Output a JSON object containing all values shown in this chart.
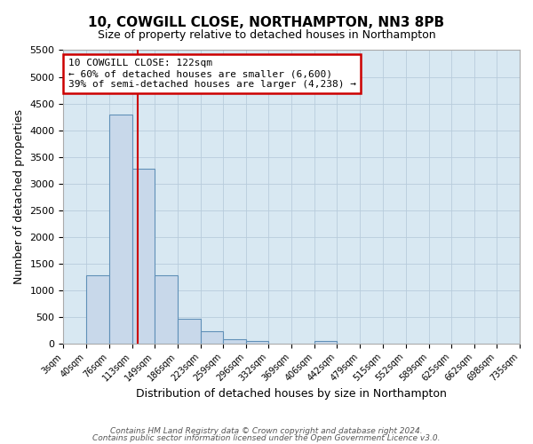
{
  "title": "10, COWGILL CLOSE, NORTHAMPTON, NN3 8PB",
  "subtitle": "Size of property relative to detached houses in Northampton",
  "xlabel": "Distribution of detached houses by size in Northampton",
  "ylabel": "Number of detached properties",
  "bin_edges": [
    3,
    40,
    76,
    113,
    149,
    186,
    223,
    259,
    296,
    332,
    369,
    406,
    442,
    479,
    515,
    552,
    589,
    625,
    662,
    698,
    735
  ],
  "bar_heights": [
    0,
    1270,
    4300,
    3270,
    1280,
    470,
    230,
    85,
    50,
    0,
    0,
    50,
    0,
    0,
    0,
    0,
    0,
    0,
    0,
    0
  ],
  "bar_color": "#c8d8ea",
  "bar_edge_color": "#6090b8",
  "vline_x": 122,
  "vline_color": "#cc0000",
  "annotation_line1": "10 COWGILL CLOSE: 122sqm",
  "annotation_line2": "← 60% of detached houses are smaller (6,600)",
  "annotation_line3": "39% of semi-detached houses are larger (4,238) →",
  "annotation_box_color": "#cc0000",
  "ylim": [
    0,
    5500
  ],
  "yticks": [
    0,
    500,
    1000,
    1500,
    2000,
    2500,
    3000,
    3500,
    4000,
    4500,
    5000,
    5500
  ],
  "footer_line1": "Contains HM Land Registry data © Crown copyright and database right 2024.",
  "footer_line2": "Contains public sector information licensed under the Open Government Licence v3.0.",
  "grid_color": "#b8ccdc",
  "background_color": "#d8e8f2"
}
